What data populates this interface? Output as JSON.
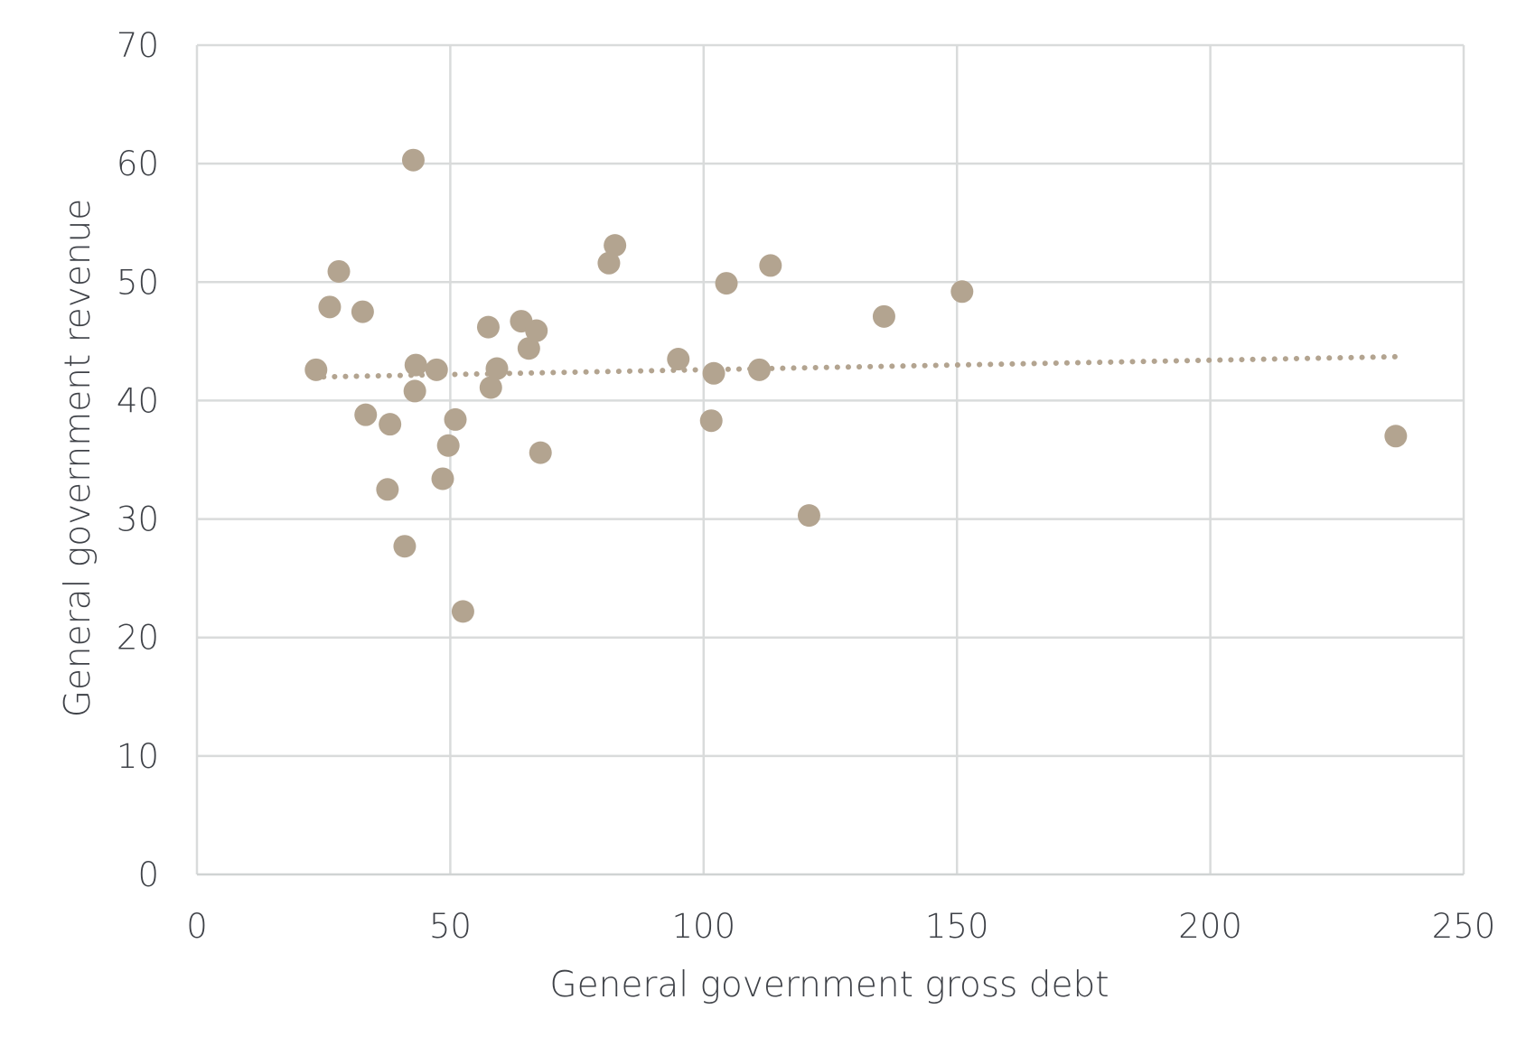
{
  "chart_data": {
    "type": "scatter",
    "title": "",
    "xlabel": "General government gross debt",
    "ylabel": "General government revenue",
    "xlim": [
      0,
      250
    ],
    "ylim": [
      0,
      70
    ],
    "xticks": [
      0,
      50,
      100,
      150,
      200,
      250
    ],
    "yticks": [
      0,
      10,
      20,
      30,
      40,
      50,
      60,
      70
    ],
    "grid": true,
    "legend": "none",
    "colors": {
      "point": "#b3a490",
      "trendline": "#b3a490",
      "grid": "#d9dbdb",
      "text": "#3e4147"
    },
    "series": [
      {
        "points": [
          [
            23.5,
            42.6
          ],
          [
            26.2,
            47.9
          ],
          [
            28.0,
            50.9
          ],
          [
            32.7,
            47.5
          ],
          [
            33.3,
            38.8
          ],
          [
            37.6,
            32.5
          ],
          [
            38.1,
            38.0
          ],
          [
            41.0,
            27.7
          ],
          [
            42.7,
            60.3
          ],
          [
            43.0,
            40.8
          ],
          [
            43.2,
            43.0
          ],
          [
            47.3,
            42.6
          ],
          [
            48.5,
            33.4
          ],
          [
            49.6,
            36.2
          ],
          [
            51.0,
            38.4
          ],
          [
            52.5,
            22.2
          ],
          [
            57.5,
            46.2
          ],
          [
            58.0,
            41.1
          ],
          [
            59.2,
            42.7
          ],
          [
            64.0,
            46.7
          ],
          [
            65.5,
            44.4
          ],
          [
            67.0,
            45.9
          ],
          [
            67.8,
            35.6
          ],
          [
            81.3,
            51.6
          ],
          [
            82.5,
            53.1
          ],
          [
            95.0,
            43.5
          ],
          [
            101.5,
            38.3
          ],
          [
            102.0,
            42.3
          ],
          [
            104.5,
            49.9
          ],
          [
            111.0,
            42.6
          ],
          [
            113.2,
            51.4
          ],
          [
            120.8,
            30.3
          ],
          [
            135.6,
            47.1
          ],
          [
            151.0,
            49.2
          ],
          [
            236.6,
            37.0
          ]
        ]
      }
    ],
    "trendline": {
      "style": "dotted",
      "x": [
        25,
        236.6
      ],
      "y": [
        42.0,
        43.7
      ]
    }
  }
}
